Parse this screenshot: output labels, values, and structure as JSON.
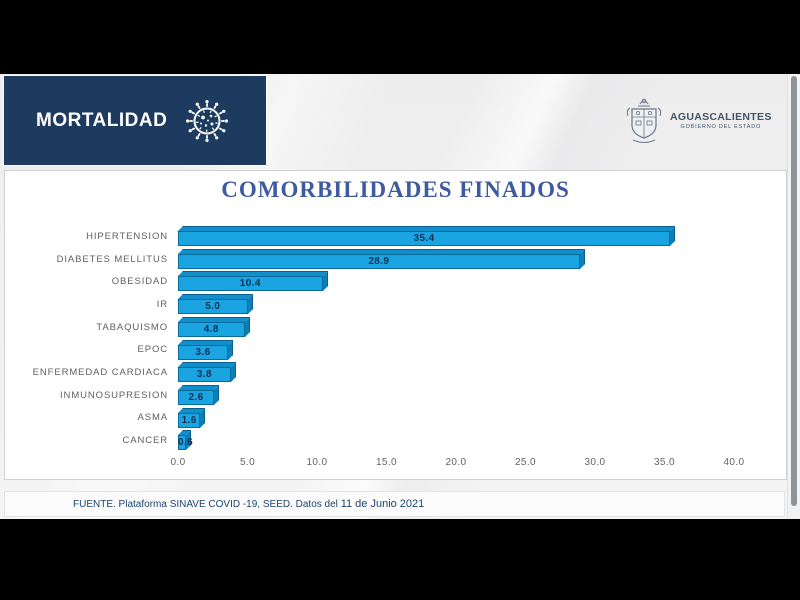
{
  "header": {
    "band_title": "MORTALIDAD",
    "logo": {
      "title": "AGUASCALIENTES",
      "subtitle": "GOBIERNO DEL ESTADO"
    }
  },
  "chart_data": {
    "type": "bar",
    "orientation": "horizontal",
    "title": "COMORBILIDADES FINADOS",
    "categories": [
      "HIPERTENSION",
      "DIABETES MELLITUS",
      "OBESIDAD",
      "IR",
      "TABAQUISMO",
      "EPOC",
      "ENFERMEDAD CARDIACA",
      "INMUNOSUPRESION",
      "ASMA",
      "CANCER"
    ],
    "values": [
      35.4,
      28.9,
      10.4,
      5.0,
      4.8,
      3.6,
      3.8,
      2.6,
      1.6,
      0.6
    ],
    "xlim": [
      0,
      40
    ],
    "x_ticks": [
      "0.0",
      "5.0",
      "10.0",
      "15.0",
      "20.0",
      "25.0",
      "30.0",
      "35.0",
      "40.0"
    ],
    "grid": false,
    "legend": "none",
    "data_labels": true,
    "bar_style": "3d-cuboid"
  },
  "footer": {
    "source_text": "FUENTE. Plataforma SINAVE COVID -19, SEED. Datos del",
    "date_text": "11 de Junio 2021"
  },
  "colors": {
    "bar_front": "#1ba4e2",
    "bar_top_face": "#0f90cc",
    "bar_side_face": "#0c7fb5",
    "bar_outline": "#0a6a9c",
    "value_label": "#0e3054",
    "category_label": "#616161",
    "title": "#3d5b9e",
    "band_navy": "#1d3b5e",
    "footer_navy": "#1f4472",
    "logo_gray": "#44546a"
  },
  "icons": {
    "virus": "coronavirus-icon",
    "crest": "aguascalientes-coat-of-arms-icon"
  }
}
